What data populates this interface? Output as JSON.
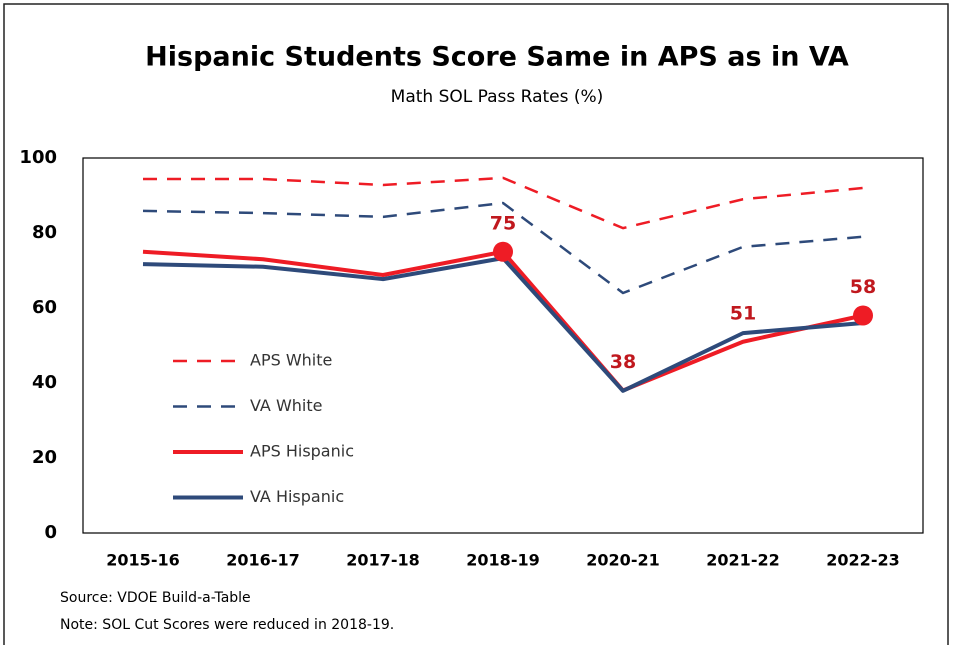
{
  "chart_data": {
    "type": "line",
    "title": "Hispanic Students Score Same in APS as in VA",
    "subtitle": "Math SOL Pass Rates (%)",
    "categories": [
      "2015-16",
      "2016-17",
      "2017-18",
      "2018-19",
      "2020-21",
      "2021-22",
      "2022-23"
    ],
    "series": [
      {
        "name": "APS White",
        "color": "#ee1c25",
        "dashed": true,
        "values": [
          94.4,
          94.4,
          92.8,
          94.7,
          81.3,
          89,
          92
        ]
      },
      {
        "name": "VA White",
        "color": "#2e4a7a",
        "dashed": true,
        "values": [
          85.9,
          85.3,
          84.3,
          88,
          64,
          76.3,
          79
        ]
      },
      {
        "name": "APS Hispanic",
        "color": "#ee1c25",
        "dashed": false,
        "values": [
          75,
          73,
          68.8,
          75,
          38,
          51,
          58
        ],
        "show_labels": [
          false,
          false,
          false,
          true,
          true,
          true,
          true
        ],
        "markers": [
          false,
          false,
          false,
          true,
          false,
          false,
          true
        ]
      },
      {
        "name": "VA Hispanic",
        "color": "#2e4a7a",
        "dashed": false,
        "values": [
          71.7,
          71,
          67.7,
          73.3,
          37.9,
          53.3,
          56
        ]
      }
    ],
    "ylim": [
      0,
      100
    ],
    "yticks": [
      0,
      20,
      40,
      60,
      80,
      100
    ],
    "grid": false,
    "legend": "left",
    "notes": [
      "Source: VDOE Build-a-Table",
      "Note: SOL Cut Scores were reduced in 2018-19."
    ]
  }
}
